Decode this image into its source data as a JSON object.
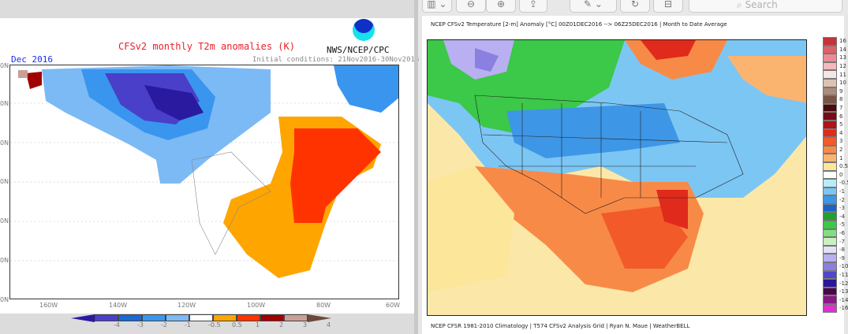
{
  "left_panel": {
    "title": "CFSv2 monthly T2m anomalies (K)",
    "org": "NWS/NCEP/CPC",
    "month": "Dec 2016",
    "initial_conditions": "Initial conditions: 21Nov2016-30Nov2016",
    "lat_labels": [
      "0N",
      "0N",
      "0N",
      "0N",
      "0N",
      "0N",
      "0N"
    ],
    "lon_labels": [
      "160W",
      "140W",
      "120W",
      "100W",
      "80W",
      "60W"
    ],
    "colorbar": {
      "labels": [
        "-4",
        "-3",
        "-2",
        "-1",
        "-0.5",
        "0.5",
        "1",
        "2",
        "3",
        "4"
      ],
      "colors": [
        "#4a3fc8",
        "#1a6ad4",
        "#3a95ef",
        "#7cbaf6",
        "#ffffff",
        "#ffa500",
        "#ff3300",
        "#a00000",
        "#c8a098"
      ],
      "low_end": "#2a1aa0",
      "high_end": "#6b4a3a"
    }
  },
  "toolbar": {
    "buttons": [
      {
        "icon": "sidebar-icon",
        "label": "▥ ⌄"
      },
      {
        "icon": "zoom-out-icon",
        "label": "⊖"
      },
      {
        "icon": "zoom-in-icon",
        "label": "⊕"
      },
      {
        "icon": "share-icon",
        "label": "⇪"
      },
      {
        "icon": "markup-pen-icon",
        "label": "✎ ⌄"
      },
      {
        "icon": "rotate-icon",
        "label": "↻"
      },
      {
        "icon": "toolbox-icon",
        "label": "⊟"
      }
    ],
    "search_placeholder": "Search"
  },
  "right_panel": {
    "title": "NCEP CFSv2 Temperature [2-m] Anomaly  [°C] 00Z01DEC2016 --> 06Z25DEC2016 | Month to Date Average",
    "footer": "NCEP CFSR 1981-2010 Climatology | T574 CFSv2 Analysis Grid | Ryan N. Maue | WeatherBELL",
    "colorbar": {
      "labels": [
        "16",
        "14",
        "13",
        "12",
        "11",
        "10",
        "9",
        "8",
        "7",
        "6",
        "5",
        "4",
        "3",
        "2",
        "1",
        "0.5",
        "0",
        "-0.5",
        "-1",
        "-2",
        "-3",
        "-4",
        "-5",
        "-6",
        "-7",
        "-8",
        "-9",
        "-10",
        "-11",
        "-12",
        "-13",
        "-14",
        "-16"
      ],
      "colors": [
        "#c8323a",
        "#e0606a",
        "#ee8a94",
        "#f6b8c0",
        "#f7e4e4",
        "#dcc2b4",
        "#b08a78",
        "#7a5444",
        "#4a0a10",
        "#7a0a14",
        "#b01418",
        "#e02a1c",
        "#f25a2a",
        "#f88a48",
        "#fbb470",
        "#fce69a",
        "#ffffff",
        "#b6ecf6",
        "#7cc6f4",
        "#3e96e6",
        "#1c64c8",
        "#20a030",
        "#3cc848",
        "#80e080",
        "#c8f0c0",
        "#e4e0f8",
        "#b8b0f0",
        "#8a80e0",
        "#5048c8",
        "#2a1898",
        "#4a0848",
        "#8a1888",
        "#e030d0"
      ]
    }
  }
}
